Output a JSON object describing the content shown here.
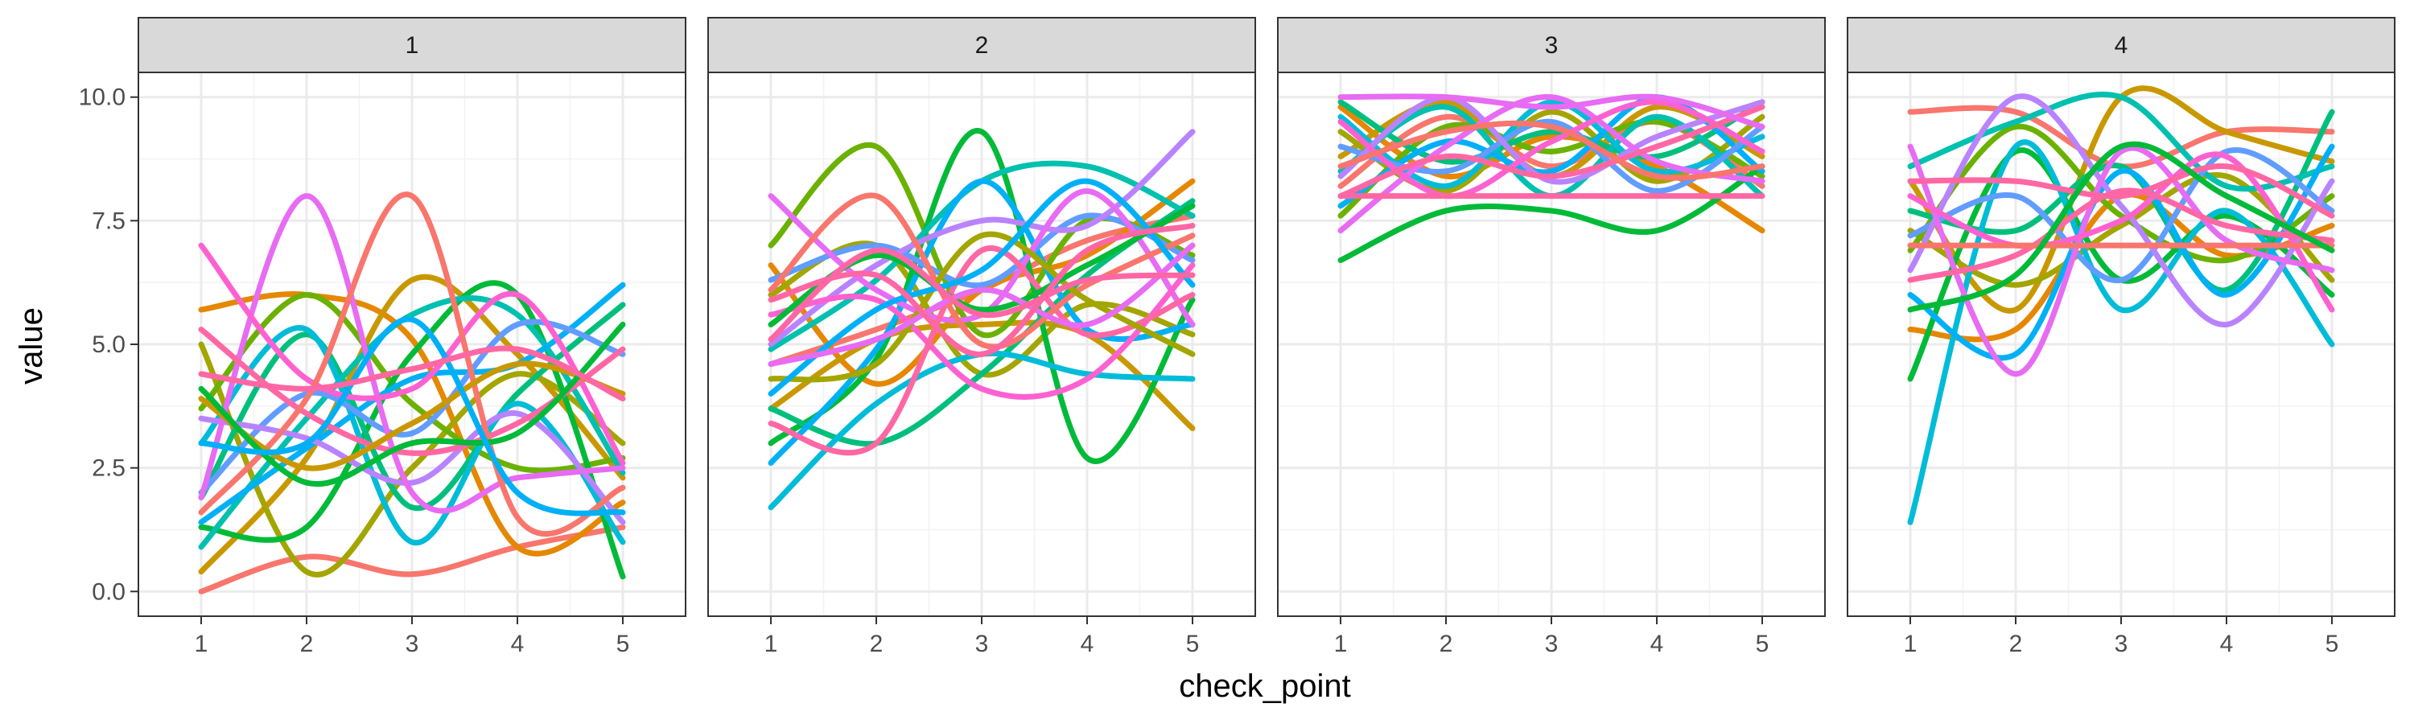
{
  "chart_data": {
    "type": "line",
    "xlabel": "check_point",
    "ylabel": "value",
    "x": [
      1,
      2,
      3,
      4,
      5
    ],
    "xticks": [
      "1",
      "2",
      "3",
      "4",
      "5"
    ],
    "yticks": [
      "0.0",
      "2.5",
      "5.0",
      "7.5",
      "10.0"
    ],
    "ylim": [
      -0.5,
      10.5
    ],
    "grid": true,
    "facet_by": "panel",
    "panels": [
      {
        "label": "1",
        "series": [
          {
            "color": "#F8766D",
            "values": [
              0.0,
              0.7,
              0.35,
              0.9,
              1.3
            ]
          },
          {
            "color": "#E58700",
            "values": [
              5.7,
              6.0,
              5.1,
              0.9,
              1.8
            ]
          },
          {
            "color": "#C99800",
            "values": [
              0.4,
              2.7,
              6.3,
              4.8,
              2.3
            ]
          },
          {
            "color": "#A3A500",
            "values": [
              5.0,
              0.4,
              2.5,
              4.4,
              3.0
            ]
          },
          {
            "color": "#6BB100",
            "values": [
              3.7,
              6.0,
              3.8,
              2.5,
              2.7
            ]
          },
          {
            "color": "#00BA38",
            "values": [
              1.3,
              1.3,
              4.8,
              6.0,
              0.3
            ]
          },
          {
            "color": "#00BF7D",
            "values": [
              1.9,
              5.2,
              1.7,
              4.0,
              5.8
            ]
          },
          {
            "color": "#00C0AF",
            "values": [
              0.9,
              3.5,
              5.6,
              5.6,
              2.4
            ]
          },
          {
            "color": "#00BCD8",
            "values": [
              3.0,
              5.3,
              1.0,
              3.8,
              1.0
            ]
          },
          {
            "color": "#00B0F6",
            "values": [
              1.4,
              2.9,
              4.3,
              4.6,
              6.2
            ]
          },
          {
            "color": "#619CFF",
            "values": [
              2.0,
              4.0,
              3.2,
              5.4,
              4.8
            ]
          },
          {
            "color": "#B983FF",
            "values": [
              3.5,
              3.1,
              2.2,
              3.6,
              1.4
            ]
          },
          {
            "color": "#E76BF3",
            "values": [
              1.9,
              8.0,
              2.0,
              2.3,
              2.5
            ]
          },
          {
            "color": "#FD61D1",
            "values": [
              7.0,
              4.3,
              4.1,
              6.0,
              2.6
            ]
          },
          {
            "color": "#FF67A4",
            "values": [
              5.3,
              3.6,
              2.8,
              3.4,
              4.9
            ]
          },
          {
            "color": "#F8766D",
            "values": [
              1.6,
              3.9,
              8.0,
              1.5,
              2.1
            ]
          },
          {
            "color": "#C99800",
            "values": [
              3.9,
              2.5,
              3.4,
              4.6,
              4.0
            ]
          },
          {
            "color": "#00BA38",
            "values": [
              4.1,
              2.2,
              3.0,
              3.2,
              5.4
            ]
          },
          {
            "color": "#00B0F6",
            "values": [
              3.0,
              3.0,
              5.5,
              2.0,
              1.6
            ]
          },
          {
            "color": "#FF67A4",
            "values": [
              4.4,
              4.1,
              4.5,
              4.9,
              3.9
            ]
          }
        ]
      },
      {
        "label": "2",
        "series": [
          {
            "color": "#F8766D",
            "values": [
              4.6,
              5.3,
              6.1,
              7.1,
              7.6
            ]
          },
          {
            "color": "#E58700",
            "values": [
              6.6,
              4.2,
              6.1,
              6.8,
              8.3
            ]
          },
          {
            "color": "#C99800",
            "values": [
              3.7,
              5.1,
              5.4,
              5.2,
              3.3
            ]
          },
          {
            "color": "#A3A500",
            "values": [
              6.0,
              7.0,
              4.4,
              5.8,
              5.2
            ]
          },
          {
            "color": "#6BB100",
            "values": [
              7.0,
              9.0,
              5.2,
              7.5,
              6.8
            ]
          },
          {
            "color": "#00BA38",
            "values": [
              3.0,
              4.7,
              9.3,
              2.7,
              5.9
            ]
          },
          {
            "color": "#00BF7D",
            "values": [
              3.7,
              3.0,
              4.4,
              6.4,
              7.9
            ]
          },
          {
            "color": "#00C0AF",
            "values": [
              4.9,
              6.3,
              8.3,
              8.6,
              7.6
            ]
          },
          {
            "color": "#00BCD8",
            "values": [
              1.7,
              3.8,
              4.8,
              4.4,
              4.3
            ]
          },
          {
            "color": "#00B0F6",
            "values": [
              2.6,
              4.9,
              8.3,
              5.3,
              5.4
            ]
          },
          {
            "color": "#619CFF",
            "values": [
              6.3,
              7.0,
              6.2,
              7.6,
              6.7
            ]
          },
          {
            "color": "#B983FF",
            "values": [
              5.0,
              6.6,
              7.5,
              7.4,
              9.3
            ]
          },
          {
            "color": "#E76BF3",
            "values": [
              8.0,
              6.1,
              5.6,
              8.1,
              5.4
            ]
          },
          {
            "color": "#FD61D1",
            "values": [
              5.6,
              5.9,
              4.1,
              4.3,
              6.6
            ]
          },
          {
            "color": "#FF67A4",
            "values": [
              3.4,
              3.0,
              6.9,
              5.2,
              6.0
            ]
          },
          {
            "color": "#F8766D",
            "values": [
              6.1,
              8.0,
              5.0,
              6.2,
              7.2
            ]
          },
          {
            "color": "#A3A500",
            "values": [
              4.3,
              4.6,
              7.2,
              5.9,
              4.8
            ]
          },
          {
            "color": "#00BA38",
            "values": [
              5.4,
              6.8,
              5.7,
              6.6,
              7.8
            ]
          },
          {
            "color": "#00B0F6",
            "values": [
              4.0,
              5.7,
              6.5,
              8.3,
              6.2
            ]
          },
          {
            "color": "#E76BF3",
            "values": [
              4.6,
              5.1,
              6.1,
              5.4,
              7.0
            ]
          },
          {
            "color": "#FF67A4",
            "values": [
              5.9,
              6.4,
              4.8,
              6.9,
              7.4
            ]
          },
          {
            "color": "#FF67A4",
            "values": [
              5.1,
              6.9,
              5.6,
              6.3,
              6.4
            ]
          }
        ]
      },
      {
        "label": "3",
        "series": [
          {
            "color": "#F8766D",
            "values": [
              8.2,
              9.6,
              8.6,
              9.5,
              8.2
            ]
          },
          {
            "color": "#E58700",
            "values": [
              9.8,
              8.4,
              9.2,
              8.6,
              7.3
            ]
          },
          {
            "color": "#C99800",
            "values": [
              8.8,
              9.9,
              8.4,
              9.8,
              8.8
            ]
          },
          {
            "color": "#A3A500",
            "values": [
              9.3,
              8.1,
              9.7,
              8.3,
              9.6
            ]
          },
          {
            "color": "#6BB100",
            "values": [
              7.6,
              9.4,
              8.9,
              9.5,
              8.4
            ]
          },
          {
            "color": "#00BA38",
            "values": [
              6.7,
              7.7,
              7.7,
              7.3,
              8.6
            ]
          },
          {
            "color": "#00BF7D",
            "values": [
              9.9,
              8.7,
              9.3,
              8.8,
              9.9
            ]
          },
          {
            "color": "#00C0AF",
            "values": [
              8.5,
              9.8,
              8.0,
              9.6,
              8.0
            ]
          },
          {
            "color": "#00BCD8",
            "values": [
              9.6,
              8.2,
              9.9,
              8.5,
              9.2
            ]
          },
          {
            "color": "#00B0F6",
            "values": [
              7.8,
              9.1,
              8.5,
              10.0,
              8.5
            ]
          },
          {
            "color": "#619CFF",
            "values": [
              9.0,
              8.5,
              9.5,
              8.1,
              9.4
            ]
          },
          {
            "color": "#B983FF",
            "values": [
              8.4,
              10.0,
              8.3,
              9.2,
              9.9
            ]
          },
          {
            "color": "#E76BF3",
            "values": [
              7.3,
              9.0,
              10.0,
              8.7,
              8.3
            ]
          },
          {
            "color": "#FD61D1",
            "values": [
              9.5,
              8.0,
              9.1,
              9.9,
              8.9
            ]
          },
          {
            "color": "#FF67A4",
            "values": [
              8.0,
              8.8,
              8.4,
              9.0,
              9.8
            ]
          },
          {
            "color": "#F8766D",
            "values": [
              8.6,
              9.3,
              9.4,
              8.4,
              8.6
            ]
          },
          {
            "color": "#E76BF3",
            "values": [
              10.0,
              10.0,
              9.8,
              10.0,
              9.4
            ]
          },
          {
            "color": "#FF67A4",
            "values": [
              8.0,
              8.0,
              8.0,
              8.0,
              8.0
            ]
          }
        ]
      },
      {
        "label": "4",
        "series": [
          {
            "color": "#F8766D",
            "values": [
              9.7,
              9.7,
              8.6,
              9.3,
              9.3
            ]
          },
          {
            "color": "#E58700",
            "values": [
              5.3,
              5.3,
              8.0,
              6.8,
              7.4
            ]
          },
          {
            "color": "#C99800",
            "values": [
              8.3,
              5.7,
              10.0,
              9.3,
              8.7
            ]
          },
          {
            "color": "#A3A500",
            "values": [
              7.3,
              6.2,
              7.4,
              8.4,
              6.3
            ]
          },
          {
            "color": "#6BB100",
            "values": [
              6.9,
              9.4,
              7.6,
              6.7,
              8.0
            ]
          },
          {
            "color": "#00BA38",
            "values": [
              4.3,
              8.9,
              6.3,
              7.6,
              6.0
            ]
          },
          {
            "color": "#00BF7D",
            "values": [
              7.7,
              7.3,
              8.6,
              6.1,
              9.7
            ]
          },
          {
            "color": "#00C0AF",
            "values": [
              8.6,
              9.5,
              10.0,
              8.2,
              8.6
            ]
          },
          {
            "color": "#00BCD8",
            "values": [
              1.4,
              9.0,
              5.7,
              7.7,
              5.0
            ]
          },
          {
            "color": "#00B0F6",
            "values": [
              6.0,
              4.8,
              8.5,
              6.0,
              9.0
            ]
          },
          {
            "color": "#619CFF",
            "values": [
              7.2,
              8.0,
              6.3,
              8.9,
              7.7
            ]
          },
          {
            "color": "#B983FF",
            "values": [
              6.5,
              10.0,
              7.8,
              5.4,
              8.3
            ]
          },
          {
            "color": "#E76BF3",
            "values": [
              9.0,
              4.4,
              8.9,
              7.1,
              6.5
            ]
          },
          {
            "color": "#FD61D1",
            "values": [
              8.0,
              7.0,
              7.5,
              8.8,
              5.7
            ]
          },
          {
            "color": "#FF67A4",
            "values": [
              6.3,
              6.8,
              8.1,
              7.4,
              7.1
            ]
          },
          {
            "color": "#F8766D",
            "values": [
              7.0,
              7.0,
              7.0,
              7.0,
              7.0
            ]
          },
          {
            "color": "#FF67A4",
            "values": [
              8.3,
              8.3,
              8.0,
              8.6,
              7.6
            ]
          },
          {
            "color": "#00BA38",
            "values": [
              5.7,
              6.4,
              9.0,
              8.0,
              6.9
            ]
          }
        ]
      }
    ]
  }
}
